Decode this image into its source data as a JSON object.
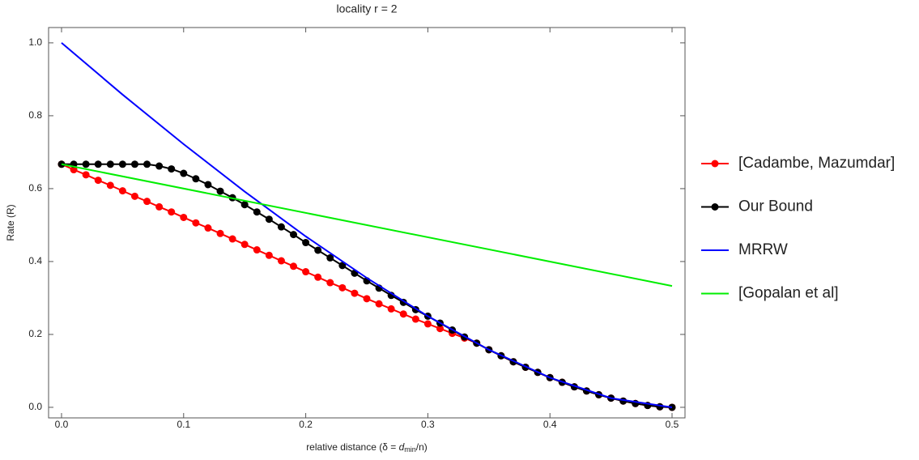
{
  "chart_data": {
    "type": "line",
    "title": "locality r = 2",
    "xlabel": [
      "relative distance (δ = ",
      "d",
      "min",
      "/n)"
    ],
    "ylabel": "Rate (R)",
    "xlim": [
      -0.0106,
      0.5106
    ],
    "ylim": [
      -0.029,
      1.042
    ],
    "xticks": [
      {
        "value": 0,
        "label": "0.0"
      },
      0.1,
      0.2,
      0.3,
      0.4,
      0.5
    ],
    "yticks": [
      {
        "value": 0,
        "label": "0.0"
      },
      0.2,
      0.4,
      0.6,
      0.8,
      {
        "value": 1,
        "label": "1.0"
      }
    ],
    "series": [
      {
        "name": "[Cadambe, Mazumdar]",
        "color": "#ff0000",
        "markers": true,
        "x": [
          0,
          0.01,
          0.02,
          0.03,
          0.04,
          0.05,
          0.06,
          0.07,
          0.08,
          0.09,
          0.1,
          0.11,
          0.12,
          0.13,
          0.14,
          0.15,
          0.16,
          0.17,
          0.18,
          0.19,
          0.2,
          0.21,
          0.22,
          0.23,
          0.24,
          0.25,
          0.26,
          0.27,
          0.28,
          0.29,
          0.3,
          0.31,
          0.32,
          0.33,
          0.34,
          0.35,
          0.36,
          0.37,
          0.38,
          0.39,
          0.4,
          0.41,
          0.42,
          0.43,
          0.44,
          0.45,
          0.46,
          0.47,
          0.48,
          0.49,
          0.5
        ],
        "values": [
          0.667,
          0.652,
          0.638,
          0.623,
          0.609,
          0.594,
          0.579,
          0.565,
          0.55,
          0.536,
          0.521,
          0.506,
          0.492,
          0.477,
          0.462,
          0.447,
          0.432,
          0.417,
          0.402,
          0.387,
          0.372,
          0.357,
          0.342,
          0.328,
          0.313,
          0.298,
          0.284,
          0.27,
          0.256,
          0.242,
          0.229,
          0.216,
          0.203,
          0.19,
          0.176,
          0.158,
          0.1415,
          0.125,
          0.11,
          0.0959,
          0.0815,
          0.0687,
          0.0562,
          0.0448,
          0.0345,
          0.0252,
          0.0172,
          0.0104,
          0.0051,
          0.0015,
          0
        ]
      },
      {
        "name": "Our Bound",
        "color": "#000000",
        "markers": true,
        "x": [
          0,
          0.01,
          0.02,
          0.03,
          0.04,
          0.05,
          0.06,
          0.07,
          0.08,
          0.09,
          0.1,
          0.11,
          0.12,
          0.13,
          0.14,
          0.15,
          0.16,
          0.17,
          0.18,
          0.19,
          0.2,
          0.21,
          0.22,
          0.23,
          0.24,
          0.25,
          0.26,
          0.27,
          0.28,
          0.29,
          0.3,
          0.31,
          0.32,
          0.33,
          0.34,
          0.35,
          0.36,
          0.37,
          0.38,
          0.39,
          0.4,
          0.41,
          0.42,
          0.43,
          0.44,
          0.45,
          0.46,
          0.47,
          0.48,
          0.49,
          0.5
        ],
        "values": [
          0.667,
          0.667,
          0.667,
          0.667,
          0.667,
          0.667,
          0.667,
          0.667,
          0.662,
          0.654,
          0.642,
          0.627,
          0.611,
          0.593,
          0.575,
          0.556,
          0.536,
          0.516,
          0.495,
          0.474,
          0.452,
          0.431,
          0.41,
          0.389,
          0.368,
          0.347,
          0.327,
          0.307,
          0.288,
          0.268,
          0.25,
          0.231,
          0.212,
          0.193,
          0.176,
          0.158,
          0.1415,
          0.125,
          0.11,
          0.0959,
          0.0815,
          0.0687,
          0.0562,
          0.0448,
          0.0345,
          0.0252,
          0.0172,
          0.0104,
          0.0051,
          0.0015,
          0
        ]
      },
      {
        "name": "MRRW",
        "color": "#0000ff",
        "markers": false,
        "x": [
          0,
          0.05,
          0.1,
          0.15,
          0.2,
          0.25,
          0.3,
          0.35,
          0.4,
          0.45,
          0.5
        ],
        "values": [
          1,
          0.858,
          0.722,
          0.592,
          0.469,
          0.355,
          0.25,
          0.158,
          0.0815,
          0.0252,
          0
        ]
      },
      {
        "name": "[Gopalan et al]",
        "color": "#00ee00",
        "markers": false,
        "x": [
          0,
          0.5
        ],
        "values": [
          0.667,
          0.333
        ]
      }
    ]
  }
}
